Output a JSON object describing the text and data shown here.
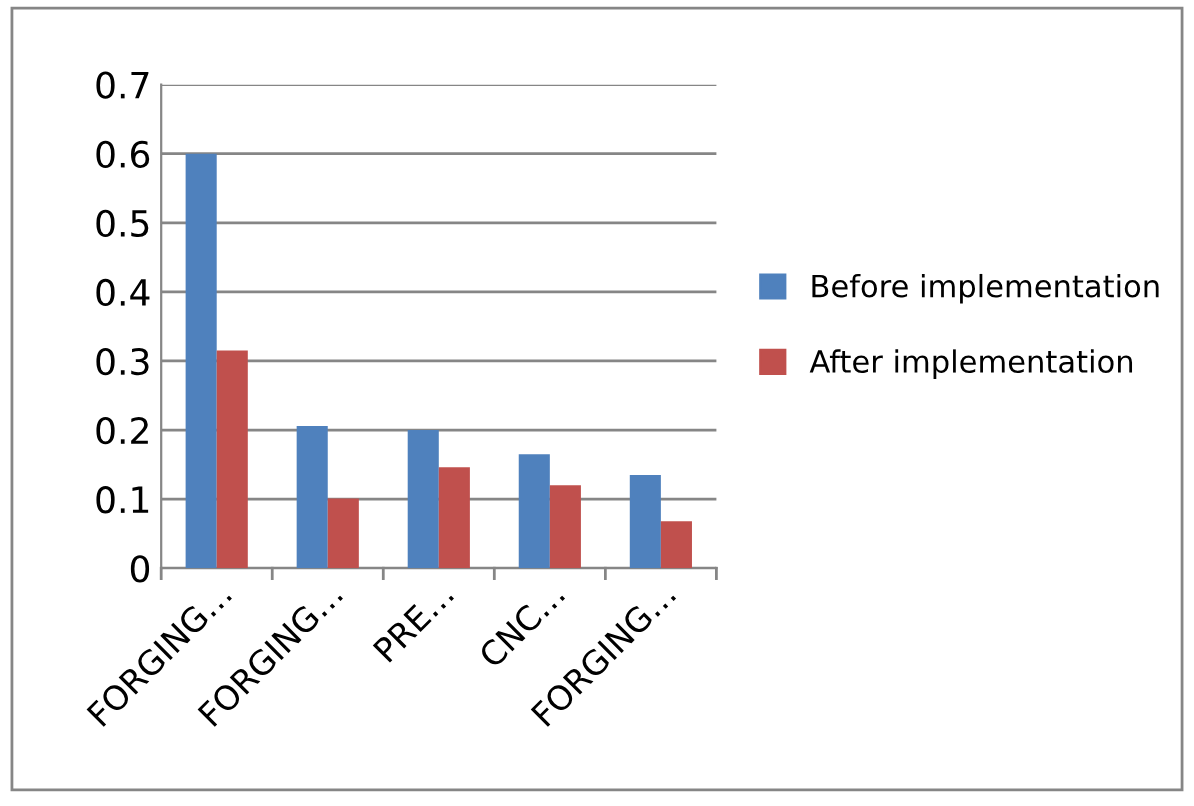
{
  "chart_data": {
    "type": "bar",
    "categories": [
      "FORGING…",
      "FORGING…",
      "PRE…",
      "CNC…",
      "FORGING…"
    ],
    "series": [
      {
        "name": "Before implementation",
        "color": "#4f81bd",
        "values": [
          0.6,
          0.206,
          0.2,
          0.165,
          0.135
        ]
      },
      {
        "name": "After implementation",
        "color": "#c0504d",
        "values": [
          0.315,
          0.101,
          0.146,
          0.12,
          0.068
        ]
      }
    ],
    "ylim": [
      0,
      0.7
    ],
    "yticks": [
      0,
      0.1,
      0.2,
      0.3,
      0.4,
      0.5,
      0.6,
      0.7
    ],
    "grid": "y",
    "legend": "right"
  }
}
